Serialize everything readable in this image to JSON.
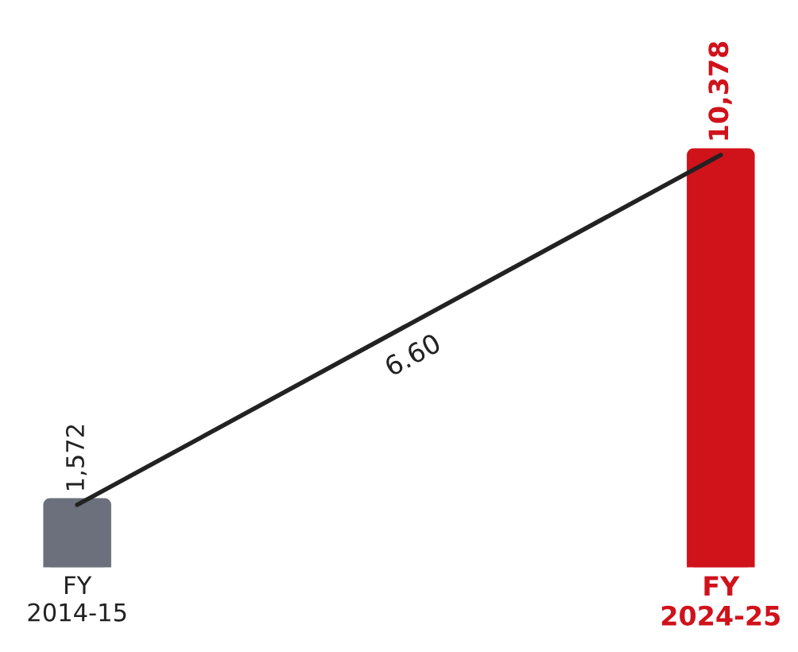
{
  "chart_data": {
    "type": "bar",
    "categories": [
      "FY\n2014-15",
      "FY\n2024-25"
    ],
    "values": [
      1572,
      10378
    ],
    "colors": [
      "#6b707c",
      "#d0121b"
    ],
    "value_labels": [
      "1,572",
      "10,378"
    ],
    "series": [
      {
        "type": "line",
        "color": "#222222",
        "values": [
          1572,
          10378
        ]
      }
    ],
    "annotations": [
      "6.60"
    ]
  }
}
